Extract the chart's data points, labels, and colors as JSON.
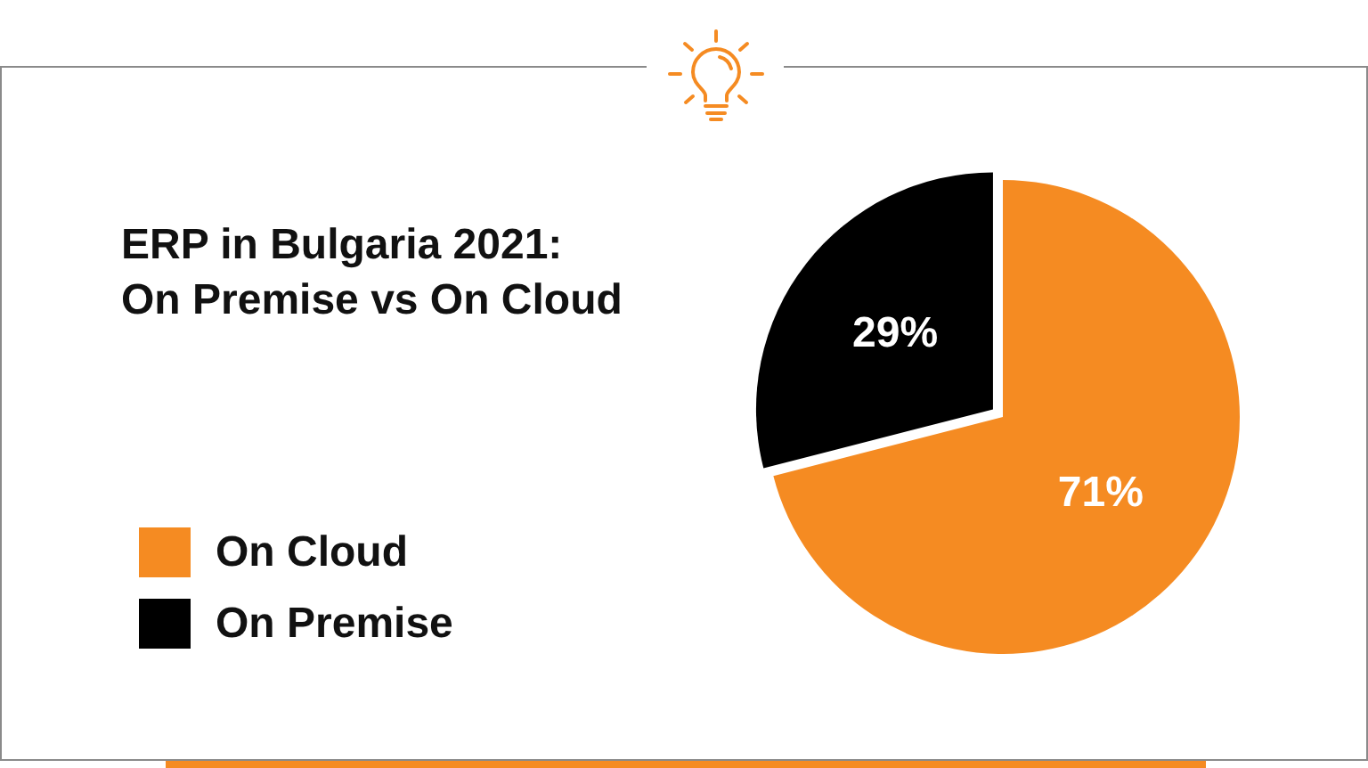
{
  "chart_data": {
    "type": "pie",
    "title": "ERP in Bulgaria 2021:\nOn Premise vs On Cloud",
    "categories": [
      "On Cloud",
      "On Premise"
    ],
    "values": [
      71,
      29
    ],
    "colors": [
      "#f58b22",
      "#000000"
    ],
    "value_labels": [
      "71%",
      "29%"
    ],
    "legend": "bottom left"
  }
}
